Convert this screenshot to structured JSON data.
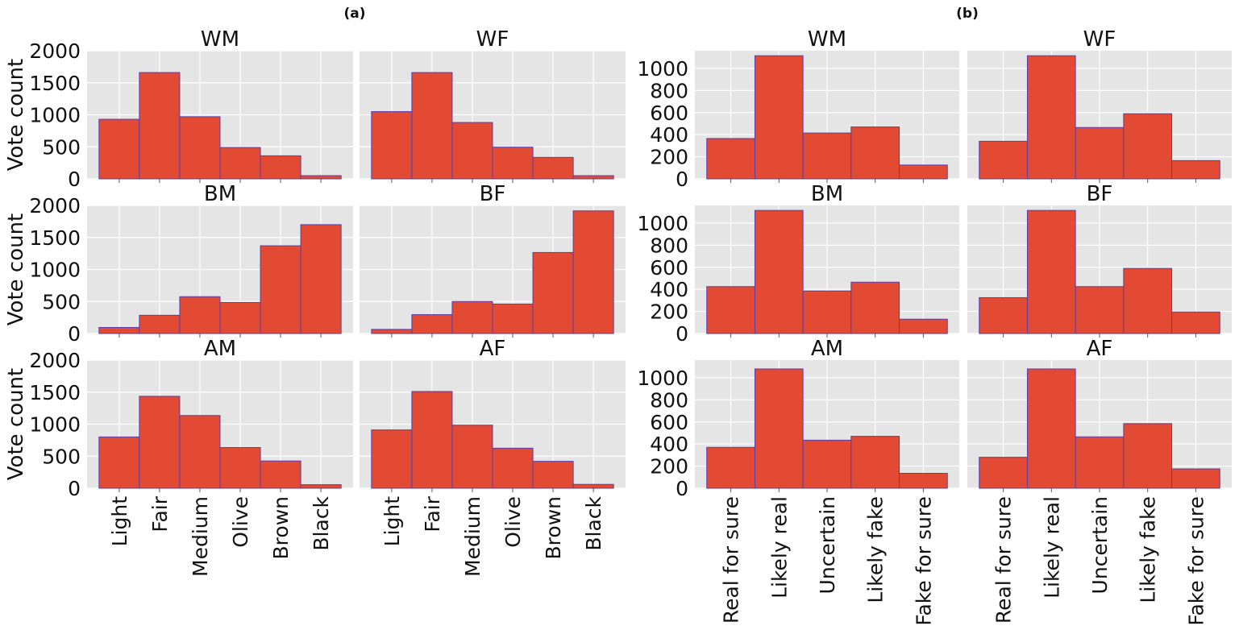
{
  "figure": {
    "group_labels": [
      "(a)",
      "(b)"
    ],
    "colors": {
      "bar": "#e24a33",
      "bar_edge": "#5a3ea8",
      "axes_bg": "#e5e5e5",
      "grid": "#ffffff",
      "tick": "#555555"
    }
  },
  "chart_data": [
    {
      "group": "(a)",
      "type": "bar",
      "title": "WM",
      "ylabel": "Vote count",
      "categories": [
        "Light",
        "Fair",
        "Medium",
        "Olive",
        "Brown",
        "Black"
      ],
      "values": [
        930,
        1660,
        970,
        490,
        360,
        50
      ],
      "ylim": [
        0,
        2000
      ],
      "yticks": [
        0,
        500,
        1000,
        1500,
        2000
      ],
      "grid": true
    },
    {
      "group": "(a)",
      "type": "bar",
      "title": "WF",
      "ylabel": "",
      "categories": [
        "Light",
        "Fair",
        "Medium",
        "Olive",
        "Brown",
        "Black"
      ],
      "values": [
        1050,
        1660,
        880,
        495,
        335,
        50
      ],
      "ylim": [
        0,
        2000
      ],
      "yticks": [
        0,
        500,
        1000,
        1500,
        2000
      ],
      "grid": true
    },
    {
      "group": "(a)",
      "type": "bar",
      "title": "BM",
      "ylabel": "Vote count",
      "categories": [
        "Light",
        "Fair",
        "Medium",
        "Olive",
        "Brown",
        "Black"
      ],
      "values": [
        95,
        285,
        575,
        485,
        1370,
        1700
      ],
      "ylim": [
        0,
        2000
      ],
      "yticks": [
        0,
        500,
        1000,
        1500,
        2000
      ],
      "grid": true
    },
    {
      "group": "(a)",
      "type": "bar",
      "title": "BF",
      "ylabel": "",
      "categories": [
        "Light",
        "Fair",
        "Medium",
        "Olive",
        "Brown",
        "Black"
      ],
      "values": [
        65,
        295,
        500,
        460,
        1265,
        1915
      ],
      "ylim": [
        0,
        2000
      ],
      "yticks": [
        0,
        500,
        1000,
        1500,
        2000
      ],
      "grid": true
    },
    {
      "group": "(a)",
      "type": "bar",
      "title": "AM",
      "ylabel": "Vote count",
      "categories": [
        "Light",
        "Fair",
        "Medium",
        "Olive",
        "Brown",
        "Black"
      ],
      "values": [
        800,
        1435,
        1135,
        635,
        425,
        55
      ],
      "ylim": [
        0,
        2000
      ],
      "yticks": [
        0,
        500,
        1000,
        1500,
        2000
      ],
      "grid": true
    },
    {
      "group": "(a)",
      "type": "bar",
      "title": "AF",
      "ylabel": "",
      "categories": [
        "Light",
        "Fair",
        "Medium",
        "Olive",
        "Brown",
        "Black"
      ],
      "values": [
        910,
        1510,
        985,
        625,
        420,
        60
      ],
      "ylim": [
        0,
        2000
      ],
      "yticks": [
        0,
        500,
        1000,
        1500,
        2000
      ],
      "grid": true
    },
    {
      "group": "(b)",
      "type": "bar",
      "title": "WM",
      "ylabel": "",
      "categories": [
        "Real for sure",
        "Likely real",
        "Uncertain",
        "Likely fake",
        "Fake for sure"
      ],
      "values": [
        365,
        1115,
        415,
        470,
        125
      ],
      "ylim": [
        0,
        1160
      ],
      "yticks": [
        0,
        200,
        400,
        600,
        800,
        1000
      ],
      "grid": true
    },
    {
      "group": "(b)",
      "type": "bar",
      "title": "WF",
      "ylabel": "",
      "categories": [
        "Real for sure",
        "Likely real",
        "Uncertain",
        "Likely fake",
        "Fake for sure"
      ],
      "values": [
        340,
        1115,
        465,
        590,
        165
      ],
      "ylim": [
        0,
        1160
      ],
      "yticks": [
        0,
        200,
        400,
        600,
        800,
        1000
      ],
      "grid": true
    },
    {
      "group": "(b)",
      "type": "bar",
      "title": "BM",
      "ylabel": "",
      "categories": [
        "Real for sure",
        "Likely real",
        "Uncertain",
        "Likely fake",
        "Fake for sure"
      ],
      "values": [
        425,
        1115,
        385,
        465,
        130
      ],
      "ylim": [
        0,
        1160
      ],
      "yticks": [
        0,
        200,
        400,
        600,
        800,
        1000
      ],
      "grid": true
    },
    {
      "group": "(b)",
      "type": "bar",
      "title": "BF",
      "ylabel": "",
      "categories": [
        "Real for sure",
        "Likely real",
        "Uncertain",
        "Likely fake",
        "Fake for sure"
      ],
      "values": [
        325,
        1115,
        425,
        590,
        195
      ],
      "ylim": [
        0,
        1160
      ],
      "yticks": [
        0,
        200,
        400,
        600,
        800,
        1000
      ],
      "grid": true
    },
    {
      "group": "(b)",
      "type": "bar",
      "title": "AM",
      "ylabel": "",
      "categories": [
        "Real for sure",
        "Likely real",
        "Uncertain",
        "Likely fake",
        "Fake for sure"
      ],
      "values": [
        370,
        1080,
        435,
        470,
        135
      ],
      "ylim": [
        0,
        1160
      ],
      "yticks": [
        0,
        200,
        400,
        600,
        800,
        1000
      ],
      "grid": true
    },
    {
      "group": "(b)",
      "type": "bar",
      "title": "AF",
      "ylabel": "",
      "categories": [
        "Real for sure",
        "Likely real",
        "Uncertain",
        "Likely fake",
        "Fake for sure"
      ],
      "values": [
        280,
        1080,
        465,
        585,
        175
      ],
      "ylim": [
        0,
        1160
      ],
      "yticks": [
        0,
        200,
        400,
        600,
        800,
        1000
      ],
      "grid": true
    }
  ]
}
